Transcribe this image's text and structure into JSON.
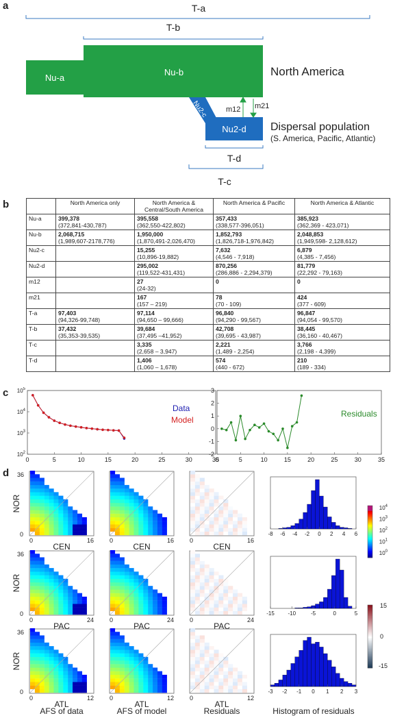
{
  "panel_a": {
    "letter": "a",
    "labels": {
      "ta": "T-a",
      "tb": "T-b",
      "tc": "T-c",
      "td": "T-d",
      "nua": "Nu-a",
      "nub": "Nu-b",
      "nu2c": "Nu2-c",
      "nu2d": "Nu2-d",
      "m12": "m12",
      "m21": "m21",
      "na": "North America",
      "disp": "Dispersal population",
      "disp_sub": "(S. America, Pacific, Atlantic)"
    },
    "colors": {
      "green": "#23a046",
      "blue": "#1f6dbf",
      "bracket": "#3a78c2"
    }
  },
  "panel_b": {
    "letter": "b",
    "headers": [
      "",
      "North America only",
      "North America & Central/South America",
      "North America & Pacific",
      "North America & Atlantic"
    ],
    "rows": [
      {
        "param": "Nu-a",
        "cells": [
          [
            "399,378",
            "(372,841-430,787)"
          ],
          [
            "395,558",
            "(362,550-422,802)"
          ],
          [
            "357,433",
            "(338,577-396,051)"
          ],
          [
            "385,923",
            "(362,369 - 423,071)"
          ]
        ]
      },
      {
        "param": "Nu-b",
        "cells": [
          [
            "2,068,715",
            "(1,989,607-2178,776)"
          ],
          [
            "1,950,000",
            "(1,870,491-2,026,470)"
          ],
          [
            "1,852,793",
            "(1,826,718-1,976,842)"
          ],
          [
            "2,048,853",
            "(1,949,598- 2,128,612)"
          ]
        ]
      },
      {
        "param": "Nu2-c",
        "cells": [
          [
            "",
            ""
          ],
          [
            "15,255",
            "(10,896-19,882)"
          ],
          [
            "7,632",
            "(4,546 - 7,918)"
          ],
          [
            "6,879",
            "(4,385 - 7,456)"
          ]
        ]
      },
      {
        "param": "Nu2-d",
        "cells": [
          [
            "",
            ""
          ],
          [
            "295,002",
            "(119,522-431,431)"
          ],
          [
            "870,256",
            "(286,886 - 2,294,379)"
          ],
          [
            "81,779",
            "(22,292 - 79,163)"
          ]
        ]
      },
      {
        "param": "m12",
        "cells": [
          [
            "",
            ""
          ],
          [
            "27",
            "(24-32)"
          ],
          [
            "0",
            ""
          ],
          [
            "0",
            ""
          ]
        ]
      },
      {
        "param": "m21",
        "cells": [
          [
            "",
            ""
          ],
          [
            "167",
            "(157 – 219)"
          ],
          [
            "78",
            "(70 - 109)"
          ],
          [
            "424",
            "(377 - 609)"
          ]
        ]
      },
      {
        "param": "T-a",
        "cells": [
          [
            "97,403",
            "(94,326-99,748)"
          ],
          [
            "97,114",
            "(94,650 – 99,666)"
          ],
          [
            "96,840",
            "(94,290 - 99,567)"
          ],
          [
            "96,847",
            "(94,054 - 99,570)"
          ]
        ]
      },
      {
        "param": "T-b",
        "cells": [
          [
            "37,432",
            "(35,353-39,535)"
          ],
          [
            "39,684",
            "(37,495 –41,952)"
          ],
          [
            "42,708",
            "(39,695 - 43,987)"
          ],
          [
            "38,445",
            "(36,160 - 40,467)"
          ]
        ]
      },
      {
        "param": "T-c",
        "cells": [
          [
            "",
            ""
          ],
          [
            "3,335",
            "(2,658 – 3,947)"
          ],
          [
            "2,221",
            "(1,489 - 2,254)"
          ],
          [
            "3,766",
            "(2,198 - 4,399)"
          ]
        ]
      },
      {
        "param": "T-d",
        "cells": [
          [
            "",
            ""
          ],
          [
            "1,406",
            "(1,060 – 1,678)"
          ],
          [
            "574",
            "(440 - 672)"
          ],
          [
            "210",
            "(189 - 334)"
          ]
        ]
      }
    ]
  },
  "panel_c": {
    "letter": "c",
    "legend_data": "Data",
    "legend_model": "Model",
    "legend_resid": "Residuals",
    "colors": {
      "data": "#1d1db0",
      "model": "#d42020",
      "resid": "#2a8a2a"
    },
    "chart_data": [
      {
        "type": "line",
        "x": [
          1,
          2,
          3,
          4,
          5,
          6,
          7,
          8,
          9,
          10,
          11,
          12,
          13,
          14,
          15,
          16,
          17,
          18
        ],
        "series": [
          {
            "name": "Data",
            "values": [
              60000,
              20000,
              9000,
              5500,
              3800,
              3000,
              2500,
              2200,
              2000,
              1850,
              1700,
              1600,
              1500,
              1420,
              1380,
              1330,
              1300,
              550
            ]
          },
          {
            "name": "Model",
            "values": [
              60000,
              20000,
              9000,
              5500,
              3800,
              3000,
              2500,
              2200,
              2000,
              1850,
              1700,
              1600,
              1500,
              1420,
              1380,
              1330,
              1300,
              600
            ]
          }
        ],
        "xticks": [
          "0",
          "5",
          "10",
          "15",
          "20",
          "25",
          "30",
          "35"
        ],
        "yticks": [
          "10^2",
          "10^3",
          "10^4",
          "10^5"
        ],
        "xlim": [
          0,
          35
        ],
        "ylim": [
          100,
          100000
        ],
        "yscale": "log"
      },
      {
        "type": "line",
        "x": [
          1,
          2,
          3,
          4,
          5,
          6,
          7,
          8,
          9,
          10,
          11,
          12,
          13,
          14,
          15,
          16,
          17,
          18
        ],
        "series": [
          {
            "name": "Residuals",
            "values": [
              0,
              -0.1,
              0.5,
              -0.9,
              1.0,
              -0.8,
              -0.1,
              0.3,
              0.1,
              0.4,
              -0.2,
              -0.4,
              -0.9,
              0,
              -1.5,
              0.2,
              0.5,
              2.6
            ]
          }
        ],
        "xticks": [
          "0",
          "5",
          "10",
          "15",
          "20",
          "25",
          "30",
          "35"
        ],
        "yticks": [
          "-2",
          "-1",
          "0",
          "1",
          "2",
          "3"
        ],
        "xlim": [
          0,
          35
        ],
        "ylim": [
          -2,
          3
        ]
      }
    ]
  },
  "panel_d": {
    "letter": "d",
    "rows": [
      {
        "pop": "CEN",
        "xmax": "16",
        "hist_ticks": [
          "-8",
          "-6",
          "-4",
          "-2",
          "0",
          "2",
          "4",
          "6"
        ]
      },
      {
        "pop": "PAC",
        "xmax": "24",
        "hist_ticks": [
          "-15",
          "-10",
          "-5",
          "0",
          "5"
        ]
      },
      {
        "pop": "ATL",
        "xmax": "12",
        "hist_ticks": [
          "-3",
          "-2",
          "-1",
          "0",
          "1",
          "2",
          "3"
        ]
      }
    ],
    "ylabel": "NOR",
    "ymax": "36",
    "zero": "0",
    "captions": [
      "AFS of data",
      "AFS of model",
      "Residuals",
      "Histogram of residuals"
    ],
    "colorbar1_ticks": [
      "10^4",
      "10^3",
      "10^2",
      "10^1",
      "10^0"
    ],
    "colorbar2_ticks": [
      "15",
      "0",
      "-15"
    ],
    "hist_color": "#0a14d6"
  }
}
